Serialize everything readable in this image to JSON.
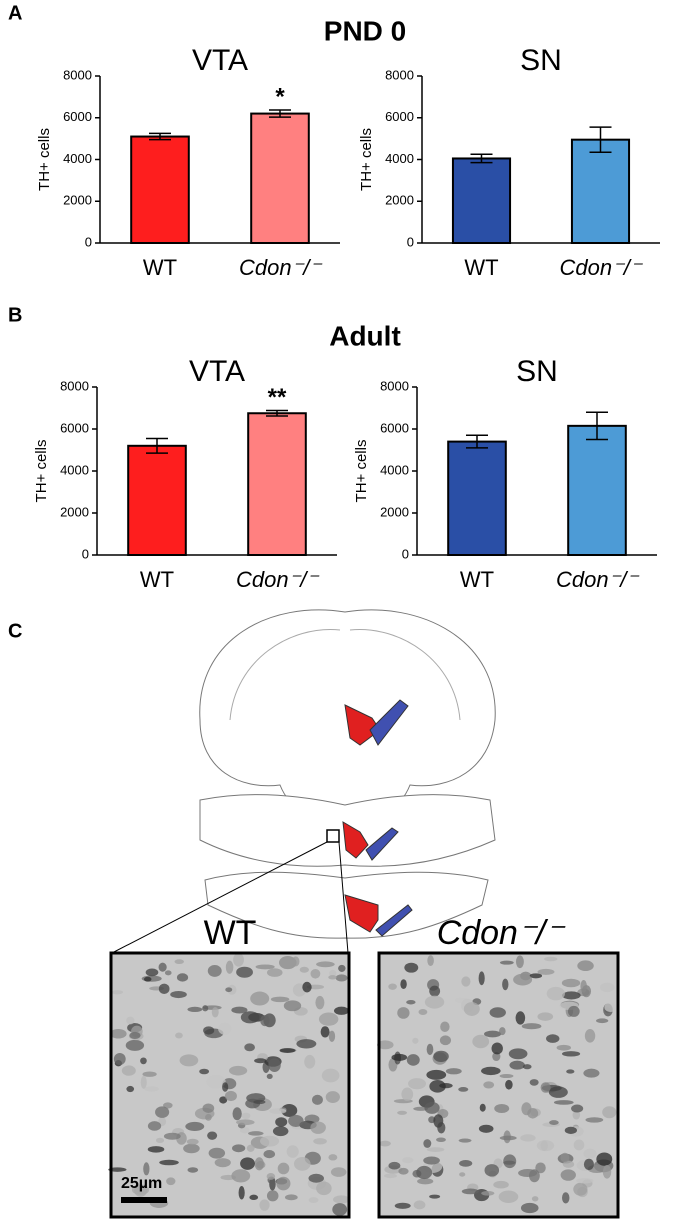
{
  "panel_labels": [
    "A",
    "B",
    "C"
  ],
  "section_titles": [
    "PND 0",
    "Adult"
  ],
  "chart_data": [
    {
      "type": "bar",
      "title": "VTA",
      "ylabel": "TH+ cells",
      "categories": [
        "WT",
        "Cdon⁻/⁻"
      ],
      "values": [
        5100,
        6200
      ],
      "errors": [
        150,
        170
      ],
      "colors": [
        "#fe1e1e",
        "#ff8080"
      ],
      "ylim": [
        0,
        8000
      ],
      "yticks": [
        0,
        2000,
        4000,
        6000,
        8000
      ],
      "significance": [
        null,
        "*"
      ]
    },
    {
      "type": "bar",
      "title": "SN",
      "ylabel": "TH+ cells",
      "categories": [
        "WT",
        "Cdon⁻/⁻"
      ],
      "values": [
        4050,
        4950
      ],
      "errors": [
        200,
        600
      ],
      "colors": [
        "#2a4fa6",
        "#4d9bd6"
      ],
      "ylim": [
        0,
        8000
      ],
      "yticks": [
        0,
        2000,
        4000,
        6000,
        8000
      ]
    },
    {
      "type": "bar",
      "title": "VTA",
      "ylabel": "TH+ cells",
      "categories": [
        "WT",
        "Cdon⁻/⁻"
      ],
      "values": [
        5200,
        6750
      ],
      "errors": [
        350,
        130
      ],
      "colors": [
        "#fe1e1e",
        "#ff8080"
      ],
      "ylim": [
        0,
        8000
      ],
      "yticks": [
        0,
        2000,
        4000,
        6000,
        8000
      ],
      "significance": [
        null,
        "**"
      ]
    },
    {
      "type": "bar",
      "title": "SN",
      "ylabel": "TH+ cells",
      "categories": [
        "WT",
        "Cdon⁻/⁻"
      ],
      "values": [
        5400,
        6150
      ],
      "errors": [
        300,
        650
      ],
      "colors": [
        "#2a4fa6",
        "#4d9bd6"
      ],
      "ylim": [
        0,
        8000
      ],
      "yticks": [
        0,
        2000,
        4000,
        6000,
        8000
      ]
    }
  ],
  "image_labels": [
    "WT",
    "Cdon⁻/⁻"
  ],
  "scale_bar": "25µm"
}
